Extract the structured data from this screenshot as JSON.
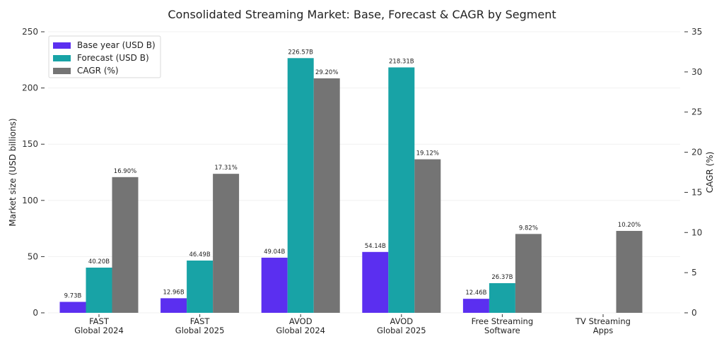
{
  "chart_data": {
    "type": "bar",
    "title": "Consolidated Streaming Market: Base, Forecast & CAGR by Segment",
    "categories": [
      [
        "FAST",
        "Global 2024"
      ],
      [
        "FAST",
        "Global 2025"
      ],
      [
        "AVOD",
        "Global 2024"
      ],
      [
        "AVOD",
        "Global 2025"
      ],
      [
        "Free Streaming",
        "Software"
      ],
      [
        "TV Streaming",
        "Apps"
      ]
    ],
    "series": [
      {
        "name": "Base year (USD B)",
        "axis": "left",
        "color": "#5b2ff0",
        "values": [
          9.73,
          12.96,
          49.04,
          54.14,
          12.46,
          null
        ],
        "labels": [
          "9.73B",
          "12.96B",
          "49.04B",
          "54.14B",
          "12.46B",
          null
        ]
      },
      {
        "name": "Forecast (USD B)",
        "axis": "left",
        "color": "#18a3a6",
        "values": [
          40.2,
          46.49,
          226.57,
          218.31,
          26.37,
          null
        ],
        "labels": [
          "40.20B",
          "46.49B",
          "226.57B",
          "218.31B",
          "26.37B",
          null
        ]
      },
      {
        "name": "CAGR (%)",
        "axis": "right",
        "color": "#747474",
        "values": [
          16.9,
          17.31,
          29.2,
          19.12,
          9.82,
          10.2
        ],
        "labels": [
          "16.90%",
          "17.31%",
          "29.20%",
          "19.12%",
          "9.82%",
          "10.20%"
        ]
      }
    ],
    "ylabel": "Market size (USD billions)",
    "ylim": [
      0,
      250
    ],
    "yticks": [
      0,
      50,
      100,
      150,
      200,
      250
    ],
    "y2label": "CAGR (%)",
    "y2lim": [
      0,
      35
    ],
    "y2ticks": [
      0,
      5,
      10,
      15,
      20,
      25,
      30,
      35
    ],
    "grid": true,
    "legend_position": "top-left"
  }
}
